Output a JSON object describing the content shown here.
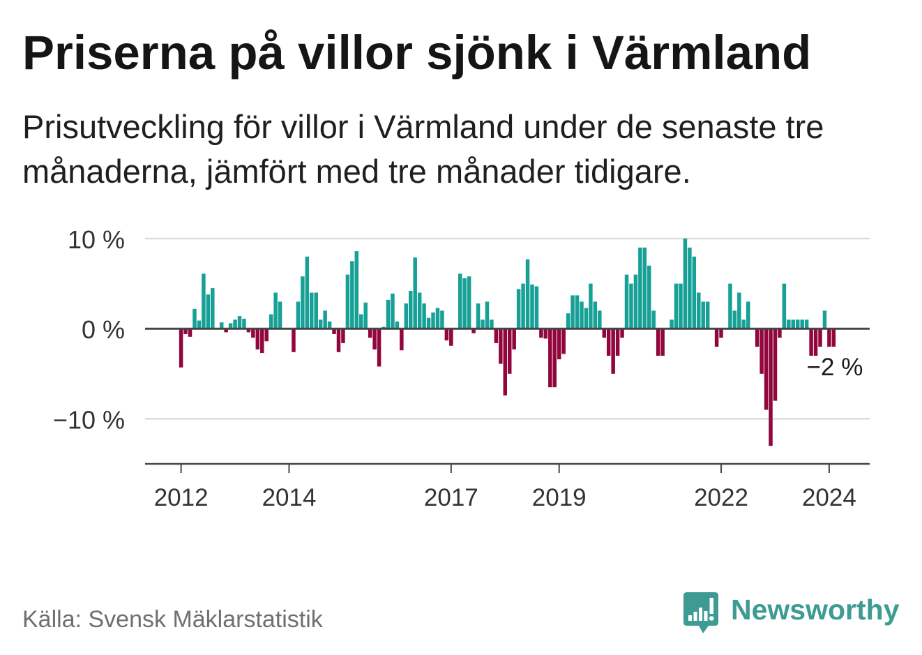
{
  "chart_data": {
    "type": "bar",
    "title": "Priserna på villor sjönk i Värmland",
    "subtitle": "Prisutveckling för villor i Värmland under de senaste tre månaderna, jämfört med tre månader tidigare.",
    "xlabel": "",
    "ylabel": "",
    "x": [
      "2012-01",
      "2012-02",
      "2012-03",
      "2012-04",
      "2012-05",
      "2012-06",
      "2012-07",
      "2012-08",
      "2012-09",
      "2012-10",
      "2012-11",
      "2012-12",
      "2013-01",
      "2013-02",
      "2013-03",
      "2013-04",
      "2013-05",
      "2013-06",
      "2013-07",
      "2013-08",
      "2013-09",
      "2013-10",
      "2013-11",
      "2013-12",
      "2014-01",
      "2014-02",
      "2014-03",
      "2014-04",
      "2014-05",
      "2014-06",
      "2014-07",
      "2014-08",
      "2014-09",
      "2014-10",
      "2014-11",
      "2014-12",
      "2015-01",
      "2015-02",
      "2015-03",
      "2015-04",
      "2015-05",
      "2015-06",
      "2015-07",
      "2015-08",
      "2015-09",
      "2015-10",
      "2015-11",
      "2015-12",
      "2016-01",
      "2016-02",
      "2016-03",
      "2016-04",
      "2016-05",
      "2016-06",
      "2016-07",
      "2016-08",
      "2016-09",
      "2016-10",
      "2016-11",
      "2016-12",
      "2017-01",
      "2017-02",
      "2017-03",
      "2017-04",
      "2017-05",
      "2017-06",
      "2017-07",
      "2017-08",
      "2017-09",
      "2017-10",
      "2017-11",
      "2017-12",
      "2018-01",
      "2018-02",
      "2018-03",
      "2018-04",
      "2018-05",
      "2018-06",
      "2018-07",
      "2018-08",
      "2018-09",
      "2018-10",
      "2018-11",
      "2018-12",
      "2019-01",
      "2019-02",
      "2019-03",
      "2019-04",
      "2019-05",
      "2019-06",
      "2019-07",
      "2019-08",
      "2019-09",
      "2019-10",
      "2019-11",
      "2019-12",
      "2020-01",
      "2020-02",
      "2020-03",
      "2020-04",
      "2020-05",
      "2020-06",
      "2020-07",
      "2020-08",
      "2020-09",
      "2020-10",
      "2020-11",
      "2020-12",
      "2021-01",
      "2021-02",
      "2021-03",
      "2021-04",
      "2021-05",
      "2021-06",
      "2021-07",
      "2021-08",
      "2021-09",
      "2021-10",
      "2021-11",
      "2021-12",
      "2022-01",
      "2022-02",
      "2022-03",
      "2022-04",
      "2022-05",
      "2022-06",
      "2022-07",
      "2022-08",
      "2022-09",
      "2022-10",
      "2022-11",
      "2022-12",
      "2023-01",
      "2023-02",
      "2023-03",
      "2023-04",
      "2023-05",
      "2023-06",
      "2023-07",
      "2023-08",
      "2023-09",
      "2023-10",
      "2023-11",
      "2023-12",
      "2024-01",
      "2024-02"
    ],
    "values": [
      -4.3,
      -0.6,
      -0.9,
      2.2,
      0.9,
      6.1,
      3.8,
      4.5,
      0,
      0.7,
      -0.4,
      0.6,
      1.0,
      1.4,
      1.1,
      -0.4,
      -1.0,
      -2.3,
      -2.7,
      -1.4,
      1.6,
      4.0,
      3.0,
      0,
      0,
      -2.6,
      3.0,
      5.8,
      8.0,
      4.0,
      4.0,
      1.0,
      2.0,
      0.8,
      -0.6,
      -2.6,
      -1.6,
      6.0,
      7.5,
      8.6,
      1.6,
      2.9,
      -1.0,
      -2.3,
      -4.2,
      0.2,
      3.2,
      3.9,
      0.8,
      -2.4,
      2.8,
      4.2,
      7.9,
      4.0,
      2.8,
      1.2,
      1.8,
      2.3,
      2.0,
      -1.3,
      -1.9,
      0,
      6.1,
      5.6,
      5.8,
      -0.5,
      2.8,
      1.0,
      3.0,
      1.0,
      -1.6,
      -3.9,
      -7.4,
      -5.0,
      -2.3,
      4.4,
      5.0,
      7.7,
      4.9,
      4.7,
      -1.0,
      -1.1,
      -6.5,
      -6.5,
      -3.4,
      -2.8,
      1.7,
      3.7,
      3.7,
      3.0,
      2.3,
      5.0,
      3.0,
      2.0,
      -1.0,
      -3.0,
      -5.0,
      -3.0,
      -1.0,
      6.0,
      5.0,
      6.0,
      9.0,
      9.0,
      7.0,
      2.0,
      -3.0,
      -3.0,
      0,
      1.0,
      5.0,
      5.0,
      10.0,
      9.0,
      8.0,
      4.0,
      3.0,
      3.0,
      0,
      -2.0,
      -1.0,
      0,
      5.0,
      2.0,
      4.0,
      1.0,
      3.0,
      0,
      -2.0,
      -5.0,
      -9.0,
      -13.0,
      -8.0,
      -1.0,
      5.0,
      1.0,
      1.0,
      1.0,
      1.0,
      1.0,
      -3.0,
      -3.0,
      -2.0,
      2.0,
      -2.0,
      -2.0
    ],
    "xlim": [
      "2011-05",
      "2024-10"
    ],
    "ylim": [
      -15,
      10
    ],
    "y_ticks": [
      10,
      0,
      -10
    ],
    "y_tick_labels": [
      "10 %",
      "0 %",
      "−10 %"
    ],
    "x_ticks": [
      "2012",
      "2014",
      "2017",
      "2019",
      "2022",
      "2024"
    ],
    "grid": true,
    "annotation": {
      "text": "−2 %",
      "x": "2024-02",
      "value": -2
    },
    "colors": {
      "positive": "#17a096",
      "negative": "#91073d"
    }
  },
  "footer": {
    "source": "Källa: Svensk Mäklarstatistik",
    "brand": "Newsworthy",
    "brand_icon": "newsworthy-logo-icon",
    "brand_color": "#3d9b93"
  }
}
